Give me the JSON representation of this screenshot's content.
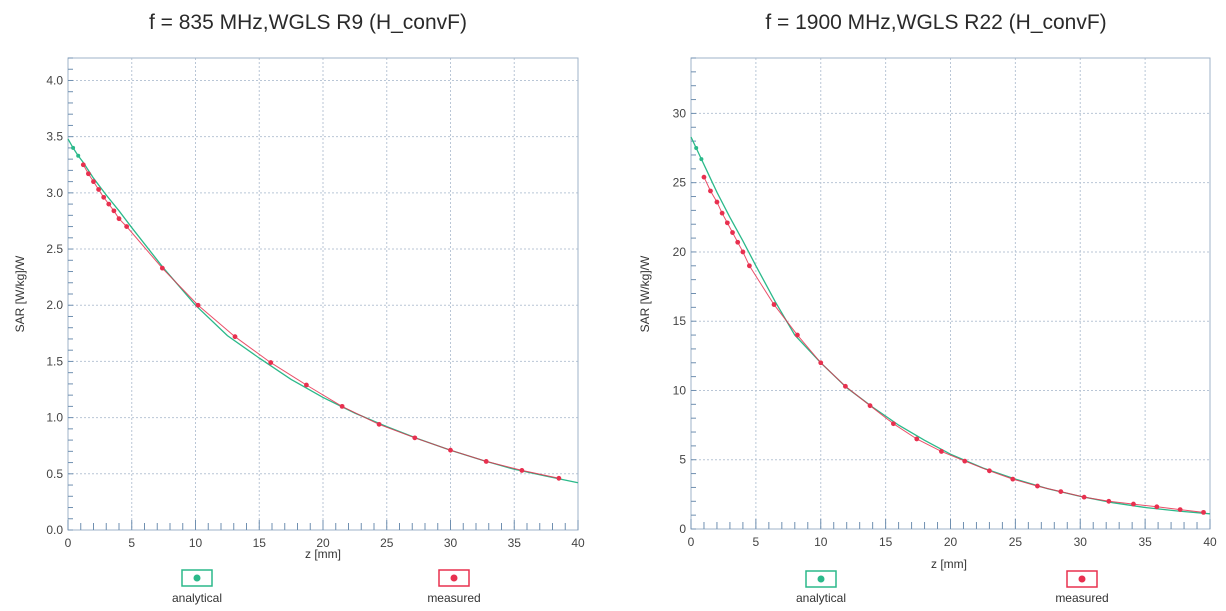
{
  "colors": {
    "analytical": "#2bb98a",
    "measured": "#e8304f",
    "grid": "#b9c6d6",
    "frame": "#9fb3c8"
  },
  "chart_data": [
    {
      "type": "line",
      "title": "f = 835 MHz,WGLS R9 (H_convF)",
      "xlabel": "z [mm]",
      "ylabel": "SAR [W/kg]/W",
      "xlim": [
        0,
        40
      ],
      "ylim": [
        0,
        4.2
      ],
      "x_ticks": [
        0,
        5,
        10,
        15,
        20,
        25,
        30,
        35,
        40
      ],
      "x_tick_labels": [
        "0",
        "5",
        "10",
        "15",
        "20",
        "25",
        "30",
        "35",
        "40"
      ],
      "y_ticks": [
        0,
        0.5,
        1.0,
        1.5,
        2.0,
        2.5,
        3.0,
        3.5,
        4.0
      ],
      "y_tick_labels": [
        "0.0",
        "0.5",
        "1.0",
        "1.5",
        "2.0",
        "2.5",
        "3.0",
        "3.5",
        "4.0"
      ],
      "grid": true,
      "legend": "bottom",
      "series": [
        {
          "name": "analytical",
          "x": [
            0,
            0.4,
            0.8,
            1.2,
            1.6,
            2.0,
            3,
            4,
            5,
            7.5,
            10,
            12.5,
            15,
            17.5,
            20,
            22.5,
            25,
            27.5,
            30,
            32.5,
            35,
            37.5,
            40
          ],
          "y": [
            3.48,
            3.4,
            3.33,
            3.27,
            3.2,
            3.13,
            2.98,
            2.84,
            2.69,
            2.33,
            2.0,
            1.73,
            1.53,
            1.34,
            1.18,
            1.04,
            0.92,
            0.81,
            0.71,
            0.62,
            0.54,
            0.48,
            0.42
          ]
        },
        {
          "name": "measured",
          "x": [
            1.2,
            1.6,
            2.0,
            2.4,
            2.8,
            3.2,
            3.6,
            4.0,
            4.6,
            7.4,
            10.2,
            13.1,
            15.9,
            18.7,
            21.5,
            24.4,
            27.2,
            30.0,
            32.8,
            35.6,
            38.5
          ],
          "y": [
            3.25,
            3.17,
            3.1,
            3.03,
            2.96,
            2.9,
            2.84,
            2.77,
            2.7,
            2.33,
            2.0,
            1.72,
            1.49,
            1.29,
            1.1,
            0.94,
            0.82,
            0.71,
            0.61,
            0.53,
            0.46
          ]
        }
      ]
    },
    {
      "type": "line",
      "title": "f = 1900 MHz,WGLS R22 (H_convF)",
      "xlabel": "z [mm]",
      "ylabel": "SAR [W/kg]/W",
      "xlim": [
        0,
        40
      ],
      "ylim": [
        0,
        34
      ],
      "x_ticks": [
        0,
        5,
        10,
        15,
        20,
        25,
        30,
        35,
        40
      ],
      "x_tick_labels": [
        "0",
        "5",
        "10",
        "15",
        "20",
        "25",
        "30",
        "35",
        "40"
      ],
      "y_ticks": [
        0,
        5,
        10,
        15,
        20,
        25,
        30
      ],
      "y_tick_labels": [
        "0",
        "5",
        "10",
        "15",
        "20",
        "25",
        "30"
      ],
      "grid": true,
      "legend": "bottom",
      "series": [
        {
          "name": "analytical",
          "x": [
            0,
            0.4,
            0.8,
            1.2,
            1.6,
            2.0,
            3,
            4,
            5,
            6.5,
            8,
            10,
            12,
            14,
            16,
            18,
            20,
            22.5,
            25,
            27.5,
            30,
            32.5,
            35,
            37.5,
            40
          ],
          "y": [
            28.3,
            27.5,
            26.7,
            25.9,
            25.1,
            24.3,
            22.5,
            20.8,
            19.0,
            16.4,
            14.0,
            12.0,
            10.2,
            8.8,
            7.5,
            6.4,
            5.4,
            4.4,
            3.6,
            2.9,
            2.35,
            1.9,
            1.55,
            1.3,
            1.1
          ]
        },
        {
          "name": "measured",
          "x": [
            1.0,
            1.5,
            2.0,
            2.4,
            2.8,
            3.2,
            3.6,
            4.0,
            4.5,
            6.4,
            8.2,
            10.0,
            11.9,
            13.8,
            15.6,
            17.4,
            19.3,
            21.1,
            23.0,
            24.8,
            26.7,
            28.5,
            30.3,
            32.2,
            34.1,
            35.9,
            37.7,
            39.5
          ],
          "y": [
            25.4,
            24.4,
            23.6,
            22.8,
            22.1,
            21.4,
            20.7,
            20.0,
            19.0,
            16.2,
            14.0,
            12.0,
            10.3,
            8.9,
            7.6,
            6.5,
            5.6,
            4.9,
            4.2,
            3.6,
            3.1,
            2.7,
            2.3,
            2.0,
            1.8,
            1.6,
            1.4,
            1.2
          ]
        }
      ]
    }
  ]
}
